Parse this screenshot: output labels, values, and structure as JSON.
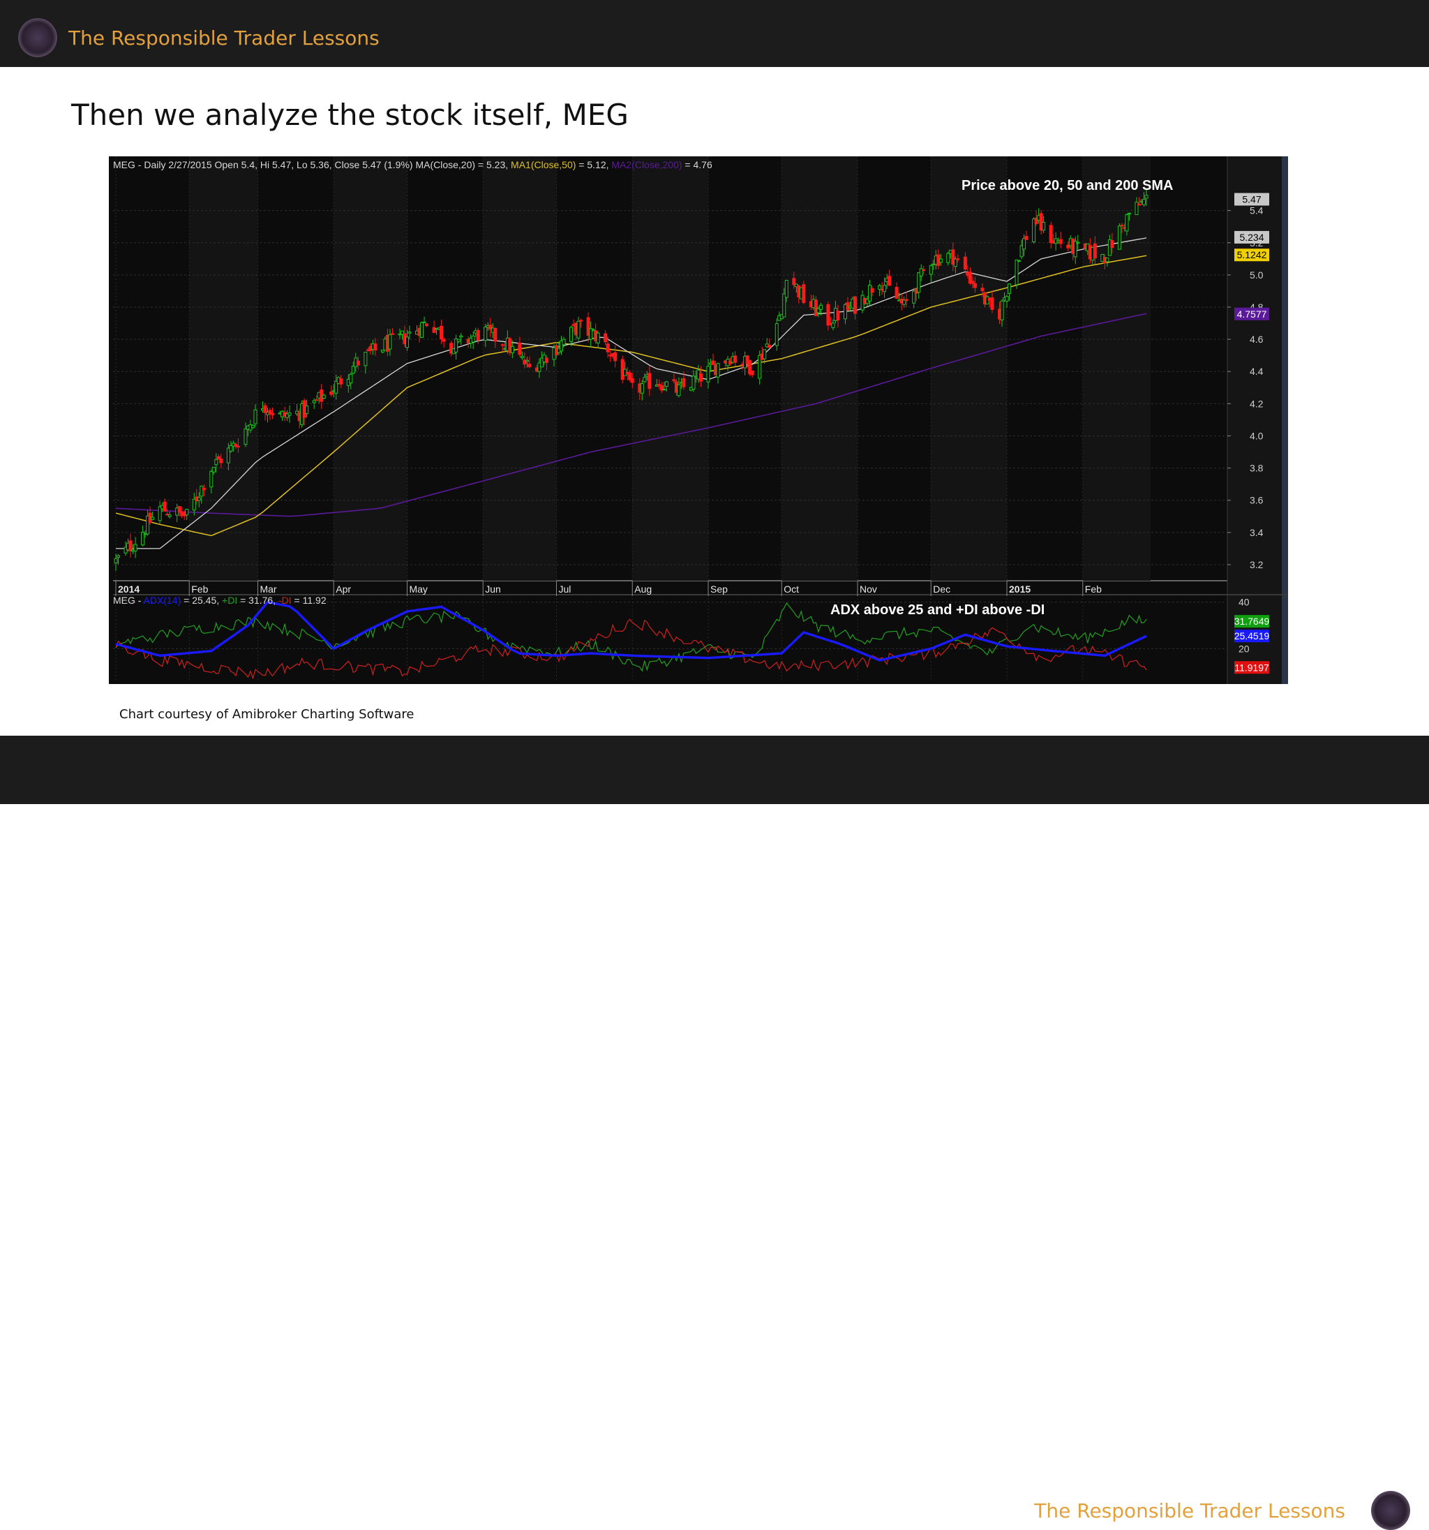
{
  "header": {
    "brand": "The Responsible Trader Lessons"
  },
  "footer": {
    "brand": "The Responsible Trader Lessons"
  },
  "slide": {
    "title": "Then we analyze the stock itself, MEG",
    "caption": "Chart courtesy of Amibroker Charting Software"
  },
  "colors": {
    "brand": "#e3a13d",
    "up_candle": "#22c322",
    "down_candle": "#ff1a1a",
    "ma20": "#d8d8d8",
    "ma50": "#e0c020",
    "ma200": "#5a1a9a",
    "adx": "#1a1aff",
    "plus_di": "#22a022",
    "minus_di": "#d02020"
  },
  "chart_data": [
    {
      "type": "candlestick",
      "header_parts": [
        {
          "text": "MEG - Daily 2/27/2015 Open 5.4, Hi 5.47, Lo 5.36, Close 5.47 (1.9%) MA(Close,20) = 5.23, ",
          "color": "#d8d8d8"
        },
        {
          "text": "MA1(Close,50)",
          "color": "#e0c020"
        },
        {
          "text": " = 5.12, ",
          "color": "#d8d8d8"
        },
        {
          "text": "MA2(Close,200)",
          "color": "#5a1a9a"
        },
        {
          "text": " = 4.76",
          "color": "#d8d8d8"
        }
      ],
      "annotation": "Price above 20, 50 and 200 SMA",
      "ylim": [
        3.1,
        5.65
      ],
      "y_ticks": [
        "3.2",
        "3.4",
        "3.6",
        "3.8",
        "4.0",
        "4.2",
        "4.4",
        "4.6",
        "4.8",
        "5.0",
        "5.2",
        "5.4"
      ],
      "month_labels": [
        "2014",
        "Feb",
        "Mar",
        "Apr",
        "May",
        "Jun",
        "Jul",
        "Aug",
        "Sep",
        "Oct",
        "Nov",
        "Dec",
        "2015",
        "Feb"
      ],
      "value_tags": [
        {
          "label": "5.47",
          "value": 5.47,
          "bg": "#c8c8c8",
          "fg": "#000000"
        },
        {
          "label": "5.234",
          "value": 5.234,
          "bg": "#c8c8c8",
          "fg": "#000000"
        },
        {
          "label": "5.1242",
          "value": 5.1242,
          "bg": "#f0d000",
          "fg": "#000000"
        },
        {
          "label": "4.7577",
          "value": 4.7577,
          "bg": "#5a1a9a",
          "fg": "#ffffff"
        }
      ],
      "close_anchors": [
        [
          "2014-01-02",
          3.22
        ],
        [
          "2014-01-10",
          3.35
        ],
        [
          "2014-01-20",
          3.55
        ],
        [
          "2014-01-31",
          3.5
        ],
        [
          "2014-02-10",
          3.8
        ],
        [
          "2014-02-20",
          3.95
        ],
        [
          "2014-03-03",
          4.2
        ],
        [
          "2014-03-10",
          4.12
        ],
        [
          "2014-03-20",
          4.15
        ],
        [
          "2014-04-01",
          4.3
        ],
        [
          "2014-04-10",
          4.45
        ],
        [
          "2014-04-20",
          4.55
        ],
        [
          "2014-05-01",
          4.62
        ],
        [
          "2014-05-10",
          4.72
        ],
        [
          "2014-05-20",
          4.55
        ],
        [
          "2014-06-01",
          4.65
        ],
        [
          "2014-06-10",
          4.58
        ],
        [
          "2014-06-20",
          4.42
        ],
        [
          "2014-07-01",
          4.55
        ],
        [
          "2014-07-10",
          4.68
        ],
        [
          "2014-07-20",
          4.6
        ],
        [
          "2014-08-01",
          4.28
        ],
        [
          "2014-08-10",
          4.35
        ],
        [
          "2014-08-20",
          4.28
        ],
        [
          "2014-09-01",
          4.4
        ],
        [
          "2014-09-10",
          4.5
        ],
        [
          "2014-09-20",
          4.42
        ],
        [
          "2014-10-01",
          4.75
        ],
        [
          "2014-10-03",
          5.02
        ],
        [
          "2014-10-10",
          4.85
        ],
        [
          "2014-10-20",
          4.72
        ],
        [
          "2014-11-01",
          4.82
        ],
        [
          "2014-11-10",
          4.98
        ],
        [
          "2014-11-20",
          4.8
        ],
        [
          "2014-12-01",
          5.1
        ],
        [
          "2014-12-10",
          5.12
        ],
        [
          "2014-12-20",
          4.92
        ],
        [
          "2014-12-28",
          4.72
        ],
        [
          "2015-01-05",
          5.1
        ],
        [
          "2015-01-12",
          5.35
        ],
        [
          "2015-01-20",
          5.22
        ],
        [
          "2015-01-31",
          5.15
        ],
        [
          "2015-02-10",
          5.12
        ],
        [
          "2015-02-20",
          5.38
        ],
        [
          "2015-02-27",
          5.47
        ]
      ],
      "ma20_anchors": [
        [
          "2014-01-02",
          3.3
        ],
        [
          "2014-01-20",
          3.3
        ],
        [
          "2014-02-10",
          3.55
        ],
        [
          "2014-03-01",
          3.85
        ],
        [
          "2014-04-01",
          4.15
        ],
        [
          "2014-05-01",
          4.45
        ],
        [
          "2014-06-01",
          4.6
        ],
        [
          "2014-07-01",
          4.55
        ],
        [
          "2014-07-20",
          4.62
        ],
        [
          "2014-08-10",
          4.42
        ],
        [
          "2014-09-01",
          4.35
        ],
        [
          "2014-09-20",
          4.45
        ],
        [
          "2014-10-10",
          4.75
        ],
        [
          "2014-11-01",
          4.78
        ],
        [
          "2014-12-01",
          4.95
        ],
        [
          "2014-12-15",
          5.02
        ],
        [
          "2015-01-01",
          4.96
        ],
        [
          "2015-01-15",
          5.1
        ],
        [
          "2015-02-01",
          5.16
        ],
        [
          "2015-02-27",
          5.23
        ]
      ],
      "ma50_anchors": [
        [
          "2014-01-02",
          3.52
        ],
        [
          "2014-01-20",
          3.45
        ],
        [
          "2014-02-10",
          3.38
        ],
        [
          "2014-03-01",
          3.5
        ],
        [
          "2014-04-01",
          3.9
        ],
        [
          "2014-05-01",
          4.3
        ],
        [
          "2014-06-01",
          4.5
        ],
        [
          "2014-07-01",
          4.58
        ],
        [
          "2014-08-01",
          4.52
        ],
        [
          "2014-09-01",
          4.4
        ],
        [
          "2014-10-01",
          4.48
        ],
        [
          "2014-11-01",
          4.62
        ],
        [
          "2014-12-01",
          4.8
        ],
        [
          "2015-01-01",
          4.92
        ],
        [
          "2015-02-01",
          5.05
        ],
        [
          "2015-02-27",
          5.12
        ]
      ],
      "ma200_anchors": [
        [
          "2014-01-02",
          3.55
        ],
        [
          "2014-02-10",
          3.52
        ],
        [
          "2014-03-15",
          3.5
        ],
        [
          "2014-04-20",
          3.55
        ],
        [
          "2014-06-01",
          3.72
        ],
        [
          "2014-07-15",
          3.9
        ],
        [
          "2014-09-01",
          4.05
        ],
        [
          "2014-10-15",
          4.2
        ],
        [
          "2014-12-01",
          4.42
        ],
        [
          "2015-01-15",
          4.62
        ],
        [
          "2015-02-27",
          4.76
        ]
      ]
    },
    {
      "type": "line",
      "header_parts": [
        {
          "text": "MEG - ",
          "color": "#d8d8d8"
        },
        {
          "text": "ADX(14)",
          "color": "#1a1aff"
        },
        {
          "text": " = 25.45, ",
          "color": "#d8d8d8"
        },
        {
          "text": "+DI",
          "color": "#22a022"
        },
        {
          "text": " = 31.76, ",
          "color": "#d8d8d8"
        },
        {
          "text": "-DI",
          "color": "#d02020"
        },
        {
          "text": " = 11.92",
          "color": "#d8d8d8"
        }
      ],
      "annotation": "ADX above 25 and +DI  above -DI",
      "ylim": [
        6,
        42
      ],
      "y_ticks": [
        "20",
        "40"
      ],
      "value_tags": [
        {
          "label": "31.7649",
          "value": 31.7649,
          "bg": "#10a010",
          "fg": "#ffffff"
        },
        {
          "label": "25.4519",
          "value": 25.4519,
          "bg": "#1a1aff",
          "fg": "#ffffff"
        },
        {
          "label": "11.9197",
          "value": 11.9197,
          "bg": "#e01010",
          "fg": "#ffffff"
        }
      ],
      "series": [
        {
          "name": "ADX(14)",
          "anchors": [
            [
              "2014-01-02",
              22
            ],
            [
              "2014-01-20",
              17
            ],
            [
              "2014-02-10",
              19
            ],
            [
              "2014-02-25",
              30
            ],
            [
              "2014-03-05",
              40
            ],
            [
              "2014-03-15",
              38
            ],
            [
              "2014-04-01",
              20
            ],
            [
              "2014-04-15",
              28
            ],
            [
              "2014-05-01",
              36
            ],
            [
              "2014-05-15",
              38
            ],
            [
              "2014-06-01",
              28
            ],
            [
              "2014-06-15",
              18
            ],
            [
              "2014-07-01",
              17
            ],
            [
              "2014-07-15",
              18
            ],
            [
              "2014-08-01",
              17
            ],
            [
              "2014-09-01",
              16
            ],
            [
              "2014-10-01",
              18
            ],
            [
              "2014-10-10",
              27
            ],
            [
              "2014-10-25",
              22
            ],
            [
              "2014-11-10",
              15
            ],
            [
              "2014-12-01",
              20
            ],
            [
              "2014-12-15",
              26
            ],
            [
              "2015-01-01",
              21
            ],
            [
              "2015-01-20",
              19
            ],
            [
              "2015-02-10",
              17
            ],
            [
              "2015-02-27",
              25.45
            ]
          ]
        },
        {
          "name": "+DI",
          "anchors": [
            [
              "2014-01-02",
              22
            ],
            [
              "2014-02-01",
              28
            ],
            [
              "2014-03-01",
              32
            ],
            [
              "2014-04-01",
              22
            ],
            [
              "2014-05-01",
              32
            ],
            [
              "2014-05-20",
              34
            ],
            [
              "2014-06-10",
              22
            ],
            [
              "2014-07-01",
              18
            ],
            [
              "2014-07-15",
              22
            ],
            [
              "2014-08-05",
              12
            ],
            [
              "2014-09-01",
              20
            ],
            [
              "2014-09-20",
              16
            ],
            [
              "2014-10-03",
              38
            ],
            [
              "2014-10-15",
              30
            ],
            [
              "2014-11-01",
              24
            ],
            [
              "2014-12-01",
              28
            ],
            [
              "2014-12-25",
              18
            ],
            [
              "2015-01-10",
              30
            ],
            [
              "2015-02-01",
              24
            ],
            [
              "2015-02-20",
              32
            ],
            [
              "2015-02-27",
              31.76
            ]
          ]
        },
        {
          "name": "-DI",
          "anchors": [
            [
              "2014-01-02",
              22
            ],
            [
              "2014-01-20",
              15
            ],
            [
              "2014-02-15",
              11
            ],
            [
              "2014-03-01",
              9
            ],
            [
              "2014-03-20",
              14
            ],
            [
              "2014-04-10",
              12
            ],
            [
              "2014-05-01",
              10
            ],
            [
              "2014-06-01",
              20
            ],
            [
              "2014-07-01",
              16
            ],
            [
              "2014-08-01",
              32
            ],
            [
              "2014-09-01",
              20
            ],
            [
              "2014-10-01",
              12
            ],
            [
              "2014-11-01",
              14
            ],
            [
              "2014-12-01",
              18
            ],
            [
              "2014-12-28",
              28
            ],
            [
              "2015-01-15",
              16
            ],
            [
              "2015-02-01",
              20
            ],
            [
              "2015-02-27",
              11.92
            ]
          ]
        }
      ]
    }
  ]
}
